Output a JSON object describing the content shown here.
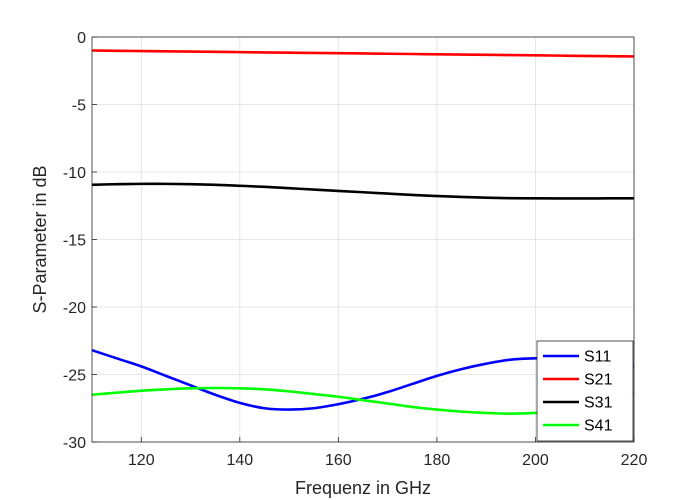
{
  "chart_data": {
    "type": "line",
    "title": "",
    "xlabel": "Frequenz in GHz",
    "ylabel": "S-Parameter in dB",
    "xlim": [
      110,
      220
    ],
    "ylim": [
      -30,
      0
    ],
    "xticks": [
      120,
      140,
      160,
      180,
      200,
      220
    ],
    "yticks": [
      0,
      -5,
      -10,
      -15,
      -20,
      -25,
      -30
    ],
    "grid": true,
    "legend_position": "bottom-right",
    "x": [
      110,
      115,
      120,
      125,
      130,
      135,
      140,
      145,
      150,
      155,
      160,
      165,
      170,
      175,
      180,
      185,
      190,
      195,
      200,
      205,
      210,
      215,
      220
    ],
    "series": [
      {
        "name": "S11",
        "color": "#0000ff",
        "values": [
          -23.2,
          -23.8,
          -24.4,
          -25.1,
          -25.8,
          -26.5,
          -27.1,
          -27.5,
          -27.6,
          -27.5,
          -27.2,
          -26.8,
          -26.3,
          -25.7,
          -25.1,
          -24.6,
          -24.2,
          -23.9,
          -23.8,
          -23.8,
          -23.9,
          -24.1,
          -24.4
        ]
      },
      {
        "name": "S21",
        "color": "#ff0000",
        "values": [
          -1.0,
          -1.02,
          -1.04,
          -1.06,
          -1.08,
          -1.1,
          -1.12,
          -1.14,
          -1.16,
          -1.18,
          -1.2,
          -1.22,
          -1.24,
          -1.26,
          -1.28,
          -1.3,
          -1.32,
          -1.34,
          -1.36,
          -1.38,
          -1.4,
          -1.42,
          -1.44
        ]
      },
      {
        "name": "S31",
        "color": "#000000",
        "values": [
          -10.95,
          -10.9,
          -10.88,
          -10.88,
          -10.9,
          -10.95,
          -11.02,
          -11.1,
          -11.2,
          -11.3,
          -11.4,
          -11.5,
          -11.6,
          -11.7,
          -11.78,
          -11.85,
          -11.9,
          -11.94,
          -11.95,
          -11.96,
          -11.96,
          -11.95,
          -11.95
        ]
      },
      {
        "name": "S41",
        "color": "#00ff00",
        "values": [
          -26.5,
          -26.35,
          -26.2,
          -26.1,
          -26.02,
          -26.0,
          -26.02,
          -26.1,
          -26.25,
          -26.45,
          -26.65,
          -26.9,
          -27.15,
          -27.4,
          -27.6,
          -27.75,
          -27.85,
          -27.9,
          -27.85,
          -27.7,
          -27.4,
          -27.0,
          -26.4
        ]
      }
    ]
  }
}
